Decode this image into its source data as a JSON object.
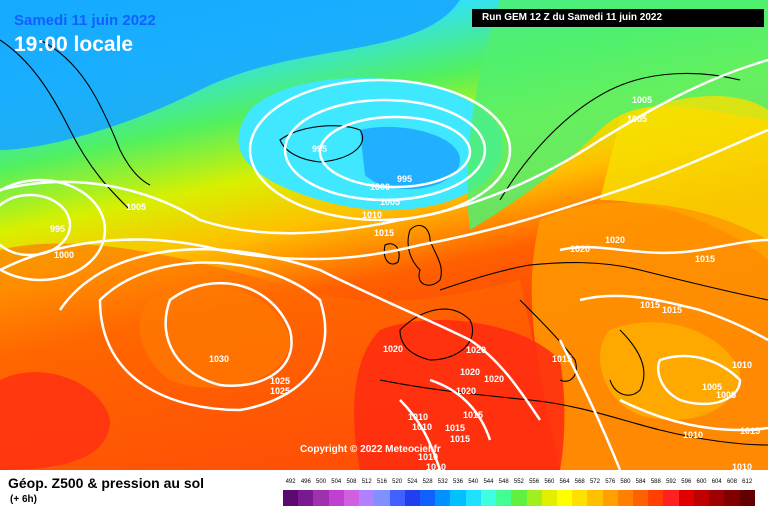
{
  "header": {
    "date": "Samedi 11 juin 2022",
    "time": "19:00 locale",
    "run": "Run GEM 12 Z du Samedi 11 juin 2022"
  },
  "copyright": "Copyright © 2022 Meteociel.fr",
  "legend": {
    "title": "Géop. Z500 & pression au sol",
    "subtitle": "(+ 6h)",
    "ticks": [
      "492",
      "496",
      "500",
      "504",
      "508",
      "512",
      "516",
      "520",
      "524",
      "528",
      "532",
      "536",
      "540",
      "544",
      "548",
      "552",
      "556",
      "560",
      "564",
      "568",
      "572",
      "576",
      "580",
      "584",
      "588",
      "592",
      "596",
      "600",
      "604",
      "608",
      "612"
    ],
    "colors": [
      "#5a0a6e",
      "#7a1a90",
      "#a030b0",
      "#c040d0",
      "#d060e0",
      "#b080ff",
      "#8090ff",
      "#4060ff",
      "#2040f0",
      "#1060ff",
      "#0090ff",
      "#00c0ff",
      "#20e0ff",
      "#40ffe0",
      "#40ff90",
      "#60f040",
      "#a0f020",
      "#e0f000",
      "#ffff00",
      "#ffe000",
      "#ffc000",
      "#ffa000",
      "#ff8000",
      "#ff6000",
      "#ff4000",
      "#ff2020",
      "#e00000",
      "#c00000",
      "#a00000",
      "#800000",
      "#600000"
    ]
  },
  "isobar_labels": [
    {
      "text": "995"
    },
    {
      "text": "995"
    },
    {
      "text": "1000"
    },
    {
      "text": "1005"
    },
    {
      "text": "1010"
    },
    {
      "text": "1015"
    },
    {
      "text": "1005"
    },
    {
      "text": "995"
    },
    {
      "text": "1000"
    },
    {
      "text": "1005"
    },
    {
      "text": "1005"
    },
    {
      "text": "1020"
    },
    {
      "text": "1020"
    },
    {
      "text": "1015"
    },
    {
      "text": "1015"
    },
    {
      "text": "1015"
    },
    {
      "text": "1030"
    },
    {
      "text": "1025"
    },
    {
      "text": "1025"
    },
    {
      "text": "1020"
    },
    {
      "text": "1020"
    },
    {
      "text": "1020"
    },
    {
      "text": "1020"
    },
    {
      "text": "1020"
    },
    {
      "text": "1015"
    },
    {
      "text": "1015"
    },
    {
      "text": "1015"
    },
    {
      "text": "1015"
    },
    {
      "text": "1010"
    },
    {
      "text": "1010"
    },
    {
      "text": "1010"
    },
    {
      "text": "1010"
    },
    {
      "text": "1005"
    },
    {
      "text": "1005"
    },
    {
      "text": "1010"
    },
    {
      "text": "1010"
    },
    {
      "text": "1010"
    },
    {
      "text": "1015"
    }
  ]
}
